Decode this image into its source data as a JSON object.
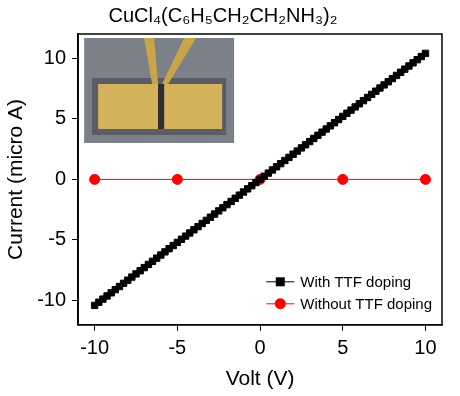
{
  "chart_data": {
    "type": "line",
    "title": "CuCl₄(C₆H₅CH₂CH₂NH₃)₂",
    "x_label": "Volt (V)",
    "y_label": "Current (micro A)",
    "xlim": [
      -11,
      11
    ],
    "ylim": [
      -12,
      12
    ],
    "xticks": [
      -10,
      -5,
      0,
      5,
      10
    ],
    "yticks": [
      -10,
      -5,
      0,
      5,
      10
    ],
    "grid": false,
    "legend": "lower right",
    "series": [
      {
        "name": "With TTF doping",
        "color": "#000000",
        "marker": "square",
        "line_style": "solid",
        "x": [
          -10,
          -9.75,
          -9.5,
          -9.25,
          -9,
          -8.75,
          -8.5,
          -8.25,
          -8,
          -7.75,
          -7.5,
          -7.25,
          -7,
          -6.75,
          -6.5,
          -6.25,
          -6,
          -5.75,
          -5.5,
          -5.25,
          -5,
          -4.75,
          -4.5,
          -4.25,
          -4,
          -3.75,
          -3.5,
          -3.25,
          -3,
          -2.75,
          -2.5,
          -2.25,
          -2,
          -1.75,
          -1.5,
          -1.25,
          -1,
          -0.75,
          -0.5,
          -0.25,
          0,
          0.25,
          0.5,
          0.75,
          1,
          1.25,
          1.5,
          1.75,
          2,
          2.25,
          2.5,
          2.75,
          3,
          3.25,
          3.5,
          3.75,
          4,
          4.25,
          4.5,
          4.75,
          5,
          5.25,
          5.5,
          5.75,
          6,
          6.25,
          6.5,
          6.75,
          7,
          7.25,
          7.5,
          7.75,
          8,
          8.25,
          8.5,
          8.75,
          9,
          9.25,
          9.5,
          9.75,
          10
        ],
        "values": [
          -10.4,
          -10.14,
          -9.88,
          -9.62,
          -9.36,
          -9.1,
          -8.84,
          -8.58,
          -8.32,
          -8.06,
          -7.8,
          -7.54,
          -7.28,
          -7.02,
          -6.76,
          -6.5,
          -6.24,
          -5.98,
          -5.72,
          -5.46,
          -5.2,
          -4.94,
          -4.68,
          -4.42,
          -4.16,
          -3.9,
          -3.64,
          -3.38,
          -3.12,
          -2.86,
          -2.6,
          -2.34,
          -2.08,
          -1.82,
          -1.56,
          -1.3,
          -1.04,
          -0.78,
          -0.52,
          -0.26,
          0,
          0.26,
          0.52,
          0.78,
          1.04,
          1.3,
          1.56,
          1.82,
          2.08,
          2.34,
          2.6,
          2.86,
          3.12,
          3.38,
          3.64,
          3.9,
          4.16,
          4.42,
          4.68,
          4.94,
          5.2,
          5.46,
          5.72,
          5.98,
          6.24,
          6.5,
          6.76,
          7.02,
          7.28,
          7.54,
          7.8,
          8.06,
          8.32,
          8.58,
          8.84,
          9.1,
          9.36,
          9.62,
          9.88,
          10.14,
          10.4
        ]
      },
      {
        "name": "Without TTF doping",
        "color": "#ff0000",
        "marker": "circle",
        "line_style": "solid",
        "x": [
          -10,
          -5,
          0,
          5,
          10
        ],
        "values": [
          0,
          0,
          0,
          0,
          0
        ]
      }
    ]
  }
}
